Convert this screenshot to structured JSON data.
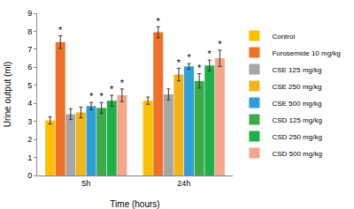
{
  "chart_data": {
    "type": "bar",
    "x_label": "Time (hours)",
    "y_label": "Urine output (ml)",
    "categories": [
      "5h",
      "24h"
    ],
    "ylim": [
      0,
      9
    ],
    "yticks": [
      0,
      1,
      2,
      3,
      4,
      5,
      6,
      7,
      8,
      9
    ],
    "grid": false,
    "legend": "right",
    "series": [
      {
        "name": "Control",
        "color": "#FFC000",
        "values": [
          3.05,
          4.15
        ],
        "errors": [
          0.2,
          0.2
        ],
        "annotations": [
          null,
          null
        ]
      },
      {
        "name": "Furosemide 10 mg/kg",
        "color": "#F07028",
        "values": [
          7.4,
          7.95
        ],
        "errors": [
          0.35,
          0.3
        ],
        "annotations": [
          "*",
          "*"
        ]
      },
      {
        "name": "CSE 125 mg/kg",
        "color": "#A6A6A6",
        "values": [
          3.4,
          4.5
        ],
        "errors": [
          0.3,
          0.3
        ],
        "annotations": [
          null,
          null
        ]
      },
      {
        "name": "CSE 250 mg/kg",
        "color": "#F2B418",
        "values": [
          3.5,
          5.6
        ],
        "errors": [
          0.3,
          0.35
        ],
        "annotations": [
          null,
          "*"
        ]
      },
      {
        "name": "CSE 500 mg/kg",
        "color": "#2E9FD8",
        "values": [
          3.85,
          6.05
        ],
        "errors": [
          0.2,
          0.15
        ],
        "annotations": [
          "*",
          "*"
        ]
      },
      {
        "name": "CSD 125 mg/kg",
        "color": "#3DAA4A",
        "values": [
          3.75,
          5.25
        ],
        "errors": [
          0.3,
          0.4
        ],
        "annotations": [
          "*",
          "*"
        ]
      },
      {
        "name": "CSD 250 mg/kg",
        "color": "#1FB04C",
        "values": [
          4.15,
          6.1
        ],
        "errors": [
          0.3,
          0.3
        ],
        "annotations": [
          "*",
          "*"
        ]
      },
      {
        "name": "CSD 500 mg/kg",
        "color": "#F4A58A",
        "values": [
          4.45,
          6.5
        ],
        "errors": [
          0.35,
          0.45
        ],
        "annotations": [
          "*",
          "*"
        ]
      }
    ]
  }
}
